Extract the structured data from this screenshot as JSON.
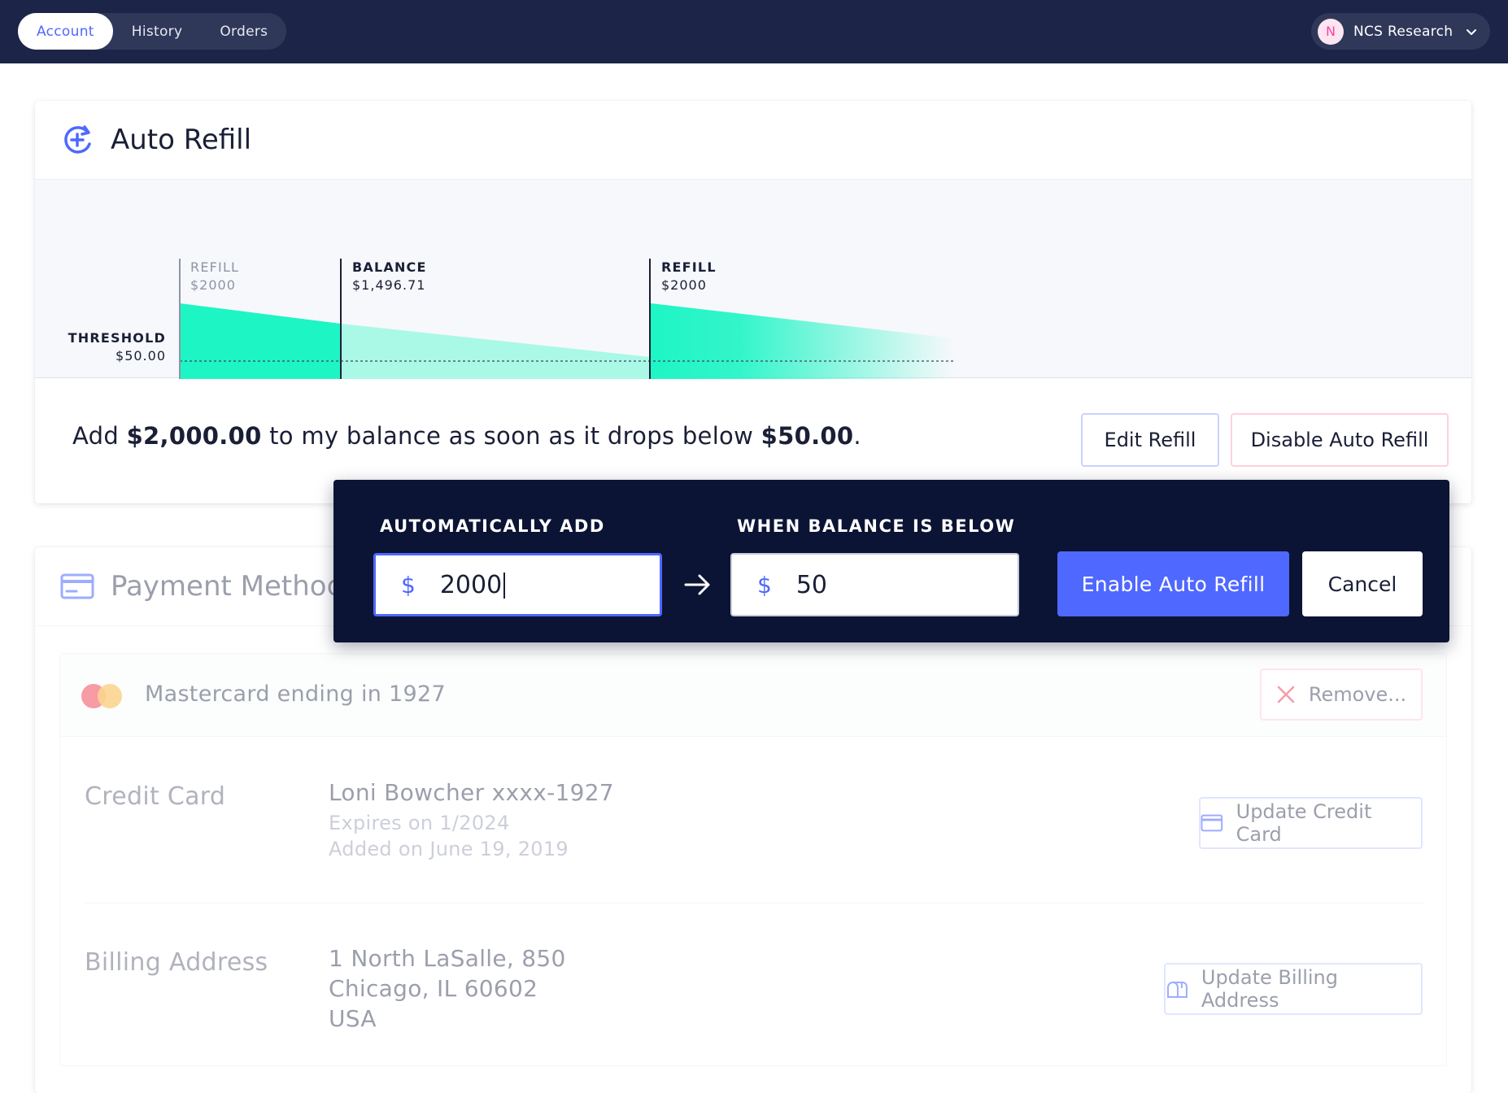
{
  "nav": {
    "tabs": [
      {
        "label": "Account",
        "active": true
      },
      {
        "label": "History",
        "active": false
      },
      {
        "label": "Orders",
        "active": false
      }
    ],
    "account": {
      "initial": "N",
      "name": "NCS Research"
    }
  },
  "auto_refill": {
    "title": "Auto Refill",
    "chart": {
      "threshold_label": "THRESHOLD",
      "threshold_value": "$50.00",
      "markers": [
        {
          "label": "REFILL",
          "value": "$2000"
        },
        {
          "label": "BALANCE",
          "value": "$1,496.71"
        },
        {
          "label": "REFILL",
          "value": "$2000"
        }
      ]
    },
    "summary": {
      "prefix": "Add",
      "amount": "$2,000.00",
      "middle": "to my balance as soon as it drops below",
      "threshold": "$50.00",
      "suffix": "."
    },
    "edit_button": "Edit Refill",
    "disable_button": "Disable Auto Refill"
  },
  "edit_popover": {
    "add_label": "AUTOMATICALLY ADD",
    "below_label": "WHEN BALANCE IS BELOW",
    "currency": "$",
    "add_value": "2000",
    "below_value": "50",
    "enable_button": "Enable Auto Refill",
    "cancel_button": "Cancel"
  },
  "payment_method": {
    "title": "Payment Method",
    "card_name": "Mastercard ending in 1927",
    "remove_button": "Remove...",
    "credit_card": {
      "label": "Credit Card",
      "holder": "Loni Bowcher xxxx-1927",
      "expires": "Expires on 1/2024",
      "added": "Added on June 19, 2019",
      "button": "Update Credit Card"
    },
    "billing": {
      "label": "Billing Address",
      "line1": "1 North LaSalle, 850",
      "line2": "Chicago, IL 60602",
      "line3": "USA",
      "button": "Update Billing Address"
    }
  },
  "colors": {
    "nav_bg": "#1c2448",
    "accent": "#4f68ff",
    "refill_green": "#1ef5c5",
    "popover_bg": "#0b1434"
  }
}
